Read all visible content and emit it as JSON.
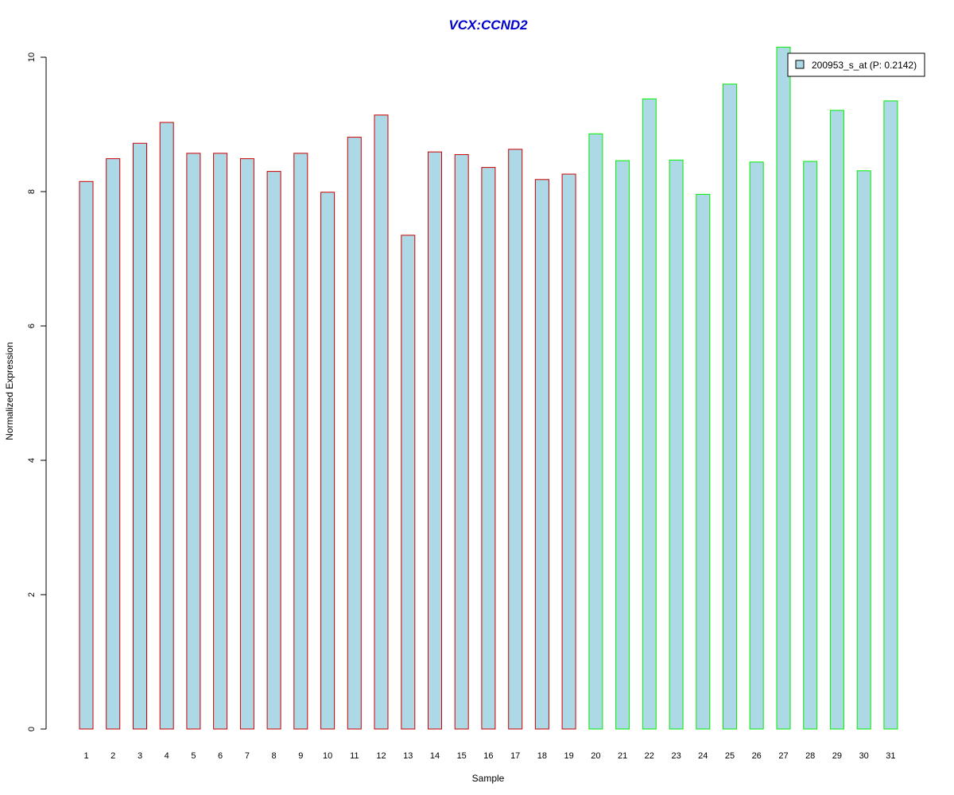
{
  "chart_data": {
    "type": "bar",
    "title": "VCX:CCND2",
    "xlabel": "Sample",
    "ylabel": "Normalized Expression",
    "ylim": [
      0,
      10
    ],
    "yticks": [
      "0",
      "2",
      "4",
      "6",
      "8",
      "10"
    ],
    "categories": [
      "1",
      "2",
      "3",
      "4",
      "5",
      "6",
      "7",
      "8",
      "9",
      "10",
      "11",
      "12",
      "13",
      "14",
      "15",
      "16",
      "17",
      "18",
      "19",
      "20",
      "21",
      "22",
      "23",
      "24",
      "25",
      "26",
      "27",
      "28",
      "29",
      "30",
      "31"
    ],
    "values": [
      8.15,
      8.49,
      8.72,
      9.03,
      8.57,
      8.57,
      8.49,
      8.3,
      8.57,
      7.99,
      8.81,
      9.14,
      7.35,
      8.59,
      8.55,
      8.36,
      8.63,
      8.18,
      8.26,
      8.86,
      8.46,
      9.38,
      8.47,
      7.96,
      9.6,
      8.44,
      10.15,
      8.45,
      9.21,
      8.31,
      9.35
    ],
    "group_sizes": [
      19,
      12
    ],
    "fill_color": "#add8e6",
    "border_colors": [
      "#cc0000",
      "#00ee00"
    ],
    "title_color": "#0000cc",
    "grid": false,
    "legend": {
      "placement": "top-right",
      "entries": [
        "200953_s_at (P: 0.2142)"
      ]
    }
  }
}
